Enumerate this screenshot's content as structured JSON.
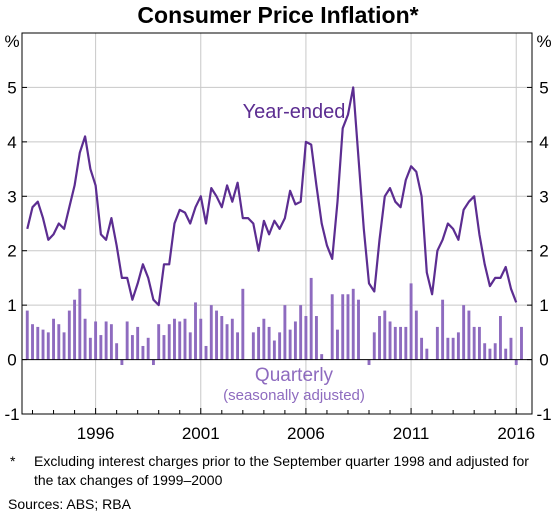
{
  "chart_data": {
    "type": "bar+line",
    "title": "Consumer Price Inflation*",
    "unit_left": "%",
    "unit_right": "%",
    "ylim": [
      -1,
      6
    ],
    "yticks": [
      -1,
      0,
      1,
      2,
      3,
      4,
      5,
      6
    ],
    "ytick_labels": [
      "-1",
      "0",
      "1",
      "2",
      "3",
      "4",
      "5",
      ""
    ],
    "xlim": [
      1992.5,
      2016.75
    ],
    "xticks": [
      1996,
      2001,
      2006,
      2011,
      2016
    ],
    "xtick_labels": [
      "1996",
      "2001",
      "2006",
      "2011",
      "2016"
    ],
    "grid": true,
    "series": [
      {
        "name": "Year-ended",
        "type": "line",
        "color": "#5c2d91",
        "start": 1992.75,
        "step": 0.25,
        "values": [
          2.4,
          2.8,
          2.9,
          2.6,
          2.2,
          2.3,
          2.5,
          2.4,
          2.8,
          3.2,
          3.8,
          4.1,
          3.5,
          3.2,
          2.3,
          2.2,
          2.6,
          2.1,
          1.5,
          1.5,
          1.1,
          1.4,
          1.75,
          1.5,
          1.1,
          1.0,
          1.75,
          1.75,
          2.5,
          2.75,
          2.7,
          2.5,
          2.8,
          3.0,
          2.5,
          3.15,
          3.0,
          2.8,
          3.2,
          2.9,
          3.25,
          2.6,
          2.6,
          2.5,
          2.0,
          2.55,
          2.3,
          2.55,
          2.4,
          2.6,
          3.1,
          2.85,
          2.9,
          4.0,
          3.95,
          3.2,
          2.5,
          2.1,
          1.85,
          2.9,
          4.25,
          4.5,
          5.0,
          3.7,
          2.4,
          1.4,
          1.25,
          2.2,
          3.0,
          3.15,
          2.9,
          2.8,
          3.3,
          3.55,
          3.45,
          3.0,
          1.6,
          1.2,
          2.0,
          2.2,
          2.5,
          2.4,
          2.2,
          2.75,
          2.9,
          3.0,
          2.3,
          1.75,
          1.35,
          1.5,
          1.5,
          1.7,
          1.3,
          1.05
        ]
      },
      {
        "name": "Quarterly",
        "type": "bar",
        "color": "#8e6bbf",
        "start": 1992.75,
        "step": 0.25,
        "values": [
          0.9,
          0.65,
          0.6,
          0.55,
          0.5,
          0.75,
          0.65,
          0.5,
          0.9,
          1.1,
          1.3,
          0.75,
          0.4,
          0.7,
          0.45,
          0.7,
          0.65,
          0.3,
          -0.1,
          0.7,
          0.45,
          0.6,
          0.25,
          0.4,
          -0.1,
          0.65,
          0.45,
          0.65,
          0.75,
          0.7,
          0.75,
          0.5,
          1.05,
          0.75,
          0.25,
          1.0,
          0.9,
          0.8,
          0.65,
          0.75,
          0.5,
          1.3,
          0.0,
          0.5,
          0.6,
          0.75,
          0.6,
          0.35,
          0.5,
          1.0,
          0.55,
          0.7,
          1.0,
          0.8,
          1.5,
          0.8,
          0.1,
          0.0,
          1.2,
          0.55,
          1.2,
          1.2,
          1.3,
          1.1,
          0.0,
          -0.1,
          0.5,
          0.8,
          0.9,
          0.7,
          0.6,
          0.6,
          0.6,
          1.4,
          0.9,
          0.4,
          0.2,
          0.0,
          0.6,
          1.1,
          0.4,
          0.4,
          0.5,
          1.0,
          0.9,
          0.6,
          0.6,
          0.3,
          0.2,
          0.3,
          0.8,
          0.2,
          0.4,
          -0.1,
          0.6
        ]
      }
    ],
    "annotations": [
      "Year-ended",
      "Quarterly",
      "(seasonally adjusted)"
    ]
  },
  "footnote": {
    "mark": "*",
    "text": "Excluding interest charges prior to the September quarter 1998 and adjusted for the tax changes of 1999–2000"
  },
  "sources": "Sources:  ABS; RBA"
}
